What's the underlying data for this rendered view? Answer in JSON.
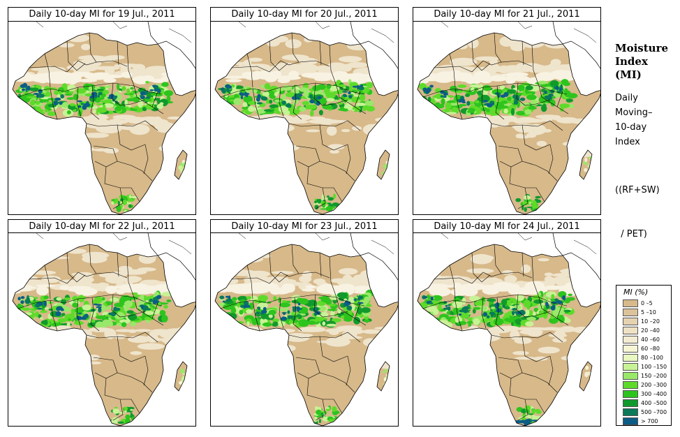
{
  "panels": [
    {
      "title": "Daily 10-day MI for  19 Jul., 2011",
      "variant": 0
    },
    {
      "title": "Daily 10-day MI for  20 Jul., 2011",
      "variant": 1
    },
    {
      "title": "Daily 10-day MI for  21 Jul., 2011",
      "variant": 2
    },
    {
      "title": "Daily 10-day MI for  22 Jul., 2011",
      "variant": 3
    },
    {
      "title": "Daily 10-day MI for  23 Jul., 2011",
      "variant": 4
    },
    {
      "title": "Daily 10-day MI for  24 Jul., 2011",
      "variant": 5
    }
  ],
  "side_title": [
    "Moisture",
    "Index",
    "(MI)"
  ],
  "side_desc": [
    "Daily",
    "Moving–",
    "10-day",
    "Index"
  ],
  "side_formula": [
    "((RF+SW)",
    "  / PET)"
  ],
  "legend": {
    "title": "MI (%)",
    "items": [
      {
        "label": "0 –5",
        "color": "#d7b98a"
      },
      {
        "label": "5 –10",
        "color": "#dcc29a"
      },
      {
        "label": "10 –20",
        "color": "#e6d2b0"
      },
      {
        "label": "20 –40",
        "color": "#efe1c4"
      },
      {
        "label": "40 –60",
        "color": "#f4ecd2"
      },
      {
        "label": "60 –80",
        "color": "#f6f6d6"
      },
      {
        "label": "80 –100",
        "color": "#e8f8c0"
      },
      {
        "label": "100 –150",
        "color": "#c8f296"
      },
      {
        "label": "150 –200",
        "color": "#9ae86a"
      },
      {
        "label": "200 –300",
        "color": "#5edb2a"
      },
      {
        "label": "300 –400",
        "color": "#2ec41e"
      },
      {
        "label": "400 –500",
        "color": "#119a2c"
      },
      {
        "label": "500 –700",
        "color": "#0a7a5a"
      },
      {
        "label": "> 700",
        "color": "#0c5d86"
      }
    ]
  }
}
